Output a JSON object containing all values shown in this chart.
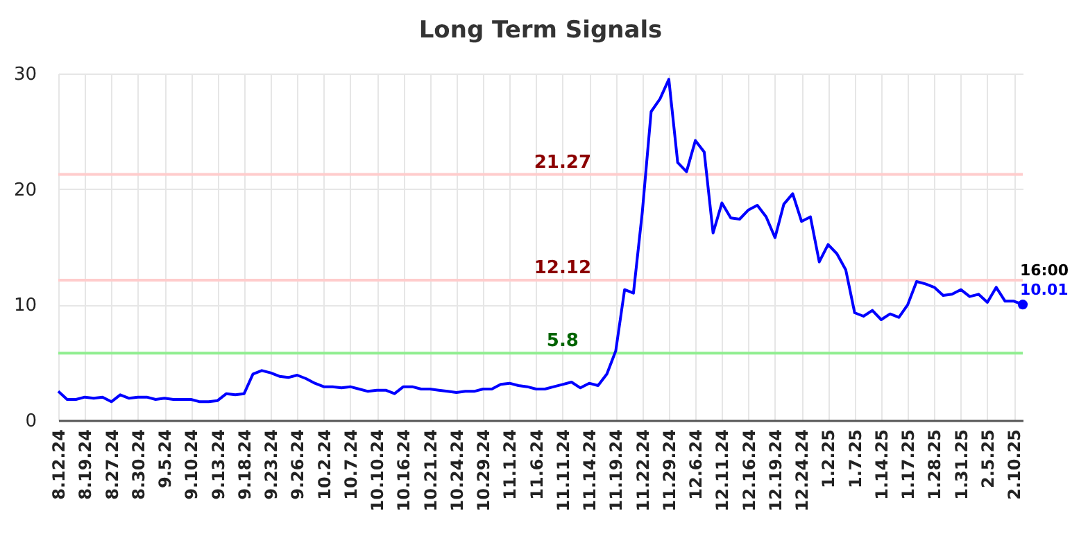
{
  "chart_data": {
    "type": "line",
    "title": "Long Term Signals",
    "categories": [
      "8.12.24",
      null,
      null,
      "8.19.24",
      null,
      null,
      "8.27.24",
      null,
      null,
      "8.30.24",
      null,
      null,
      "9.5.24",
      null,
      null,
      "9.10.24",
      null,
      null,
      "9.13.24",
      null,
      null,
      "9.18.24",
      null,
      null,
      "9.23.24",
      null,
      null,
      "9.26.24",
      null,
      null,
      "10.2.24",
      null,
      null,
      "10.7.24",
      null,
      null,
      "10.10.24",
      null,
      null,
      "10.16.24",
      null,
      null,
      "10.21.24",
      null,
      null,
      "10.24.24",
      null,
      null,
      "10.29.24",
      null,
      null,
      "11.1.24",
      null,
      null,
      "11.6.24",
      null,
      null,
      "11.11.24",
      null,
      null,
      "11.14.24",
      null,
      null,
      "11.19.24",
      null,
      null,
      "11.22.24",
      null,
      null,
      "11.29.24",
      null,
      null,
      "12.6.24",
      null,
      null,
      "12.11.24",
      null,
      null,
      "12.16.24",
      null,
      null,
      "12.19.24",
      null,
      null,
      "12.24.24",
      null,
      null,
      "1.2.25",
      null,
      null,
      "1.7.25",
      null,
      null,
      "1.14.25",
      null,
      null,
      "1.17.25",
      null,
      null,
      "1.28.25",
      null,
      null,
      "1.31.25",
      null,
      null,
      "2.5.25",
      null,
      null,
      "2.10.25",
      null
    ],
    "series": [
      {
        "color": "#0000ff",
        "values": [
          2.5,
          1.8,
          1.8,
          2.0,
          1.9,
          2.0,
          1.6,
          2.2,
          1.9,
          2.0,
          2.0,
          1.8,
          1.9,
          1.8,
          1.8,
          1.8,
          1.6,
          1.6,
          1.7,
          2.3,
          2.2,
          2.3,
          4.0,
          4.3,
          4.1,
          3.8,
          3.7,
          3.9,
          3.6,
          3.2,
          2.9,
          2.9,
          2.8,
          2.9,
          2.7,
          2.5,
          2.6,
          2.6,
          2.3,
          2.9,
          2.9,
          2.7,
          2.7,
          2.6,
          2.5,
          2.4,
          2.5,
          2.5,
          2.7,
          2.7,
          3.1,
          3.2,
          3.0,
          2.9,
          2.7,
          2.7,
          2.9,
          3.1,
          3.3,
          2.8,
          3.2,
          3.0,
          4.0,
          6.0,
          11.3,
          11.0,
          18.0,
          26.7,
          27.8,
          29.5,
          22.3,
          21.5,
          24.2,
          23.2,
          16.2,
          18.8,
          17.5,
          17.4,
          18.2,
          18.6,
          17.6,
          15.8,
          18.7,
          19.6,
          17.2,
          17.6,
          13.7,
          15.2,
          14.4,
          13.0,
          9.3,
          9.0,
          9.5,
          8.7,
          9.2,
          8.9,
          10.0,
          12.0,
          11.8,
          11.5,
          10.8,
          10.9,
          11.3,
          10.7,
          10.9,
          10.2,
          11.5,
          10.3,
          10.3,
          10.01
        ],
        "value_labels": [
          null,
          null,
          null,
          null,
          null,
          null,
          null,
          null,
          null,
          null,
          null,
          null,
          null,
          null,
          null,
          null,
          null,
          null,
          null,
          null,
          null,
          null,
          null,
          null,
          null,
          null,
          null,
          null,
          null,
          null,
          null,
          null,
          null,
          null,
          null,
          null,
          null,
          null,
          null,
          null,
          null,
          null,
          null,
          null,
          null,
          null,
          null,
          null,
          null,
          null,
          null,
          null,
          null,
          null,
          null,
          null,
          null,
          null,
          null,
          null,
          null,
          null,
          null,
          null,
          null,
          null,
          null,
          null,
          null,
          null,
          null,
          null,
          null,
          null,
          null,
          null,
          null,
          null,
          null,
          null,
          null,
          null,
          null,
          null,
          null,
          null,
          null,
          null,
          null,
          null,
          null,
          null,
          null,
          null,
          null,
          null,
          null,
          null,
          null,
          null,
          null,
          null,
          null,
          null,
          null,
          null,
          null,
          null,
          null,
          "10.01"
        ]
      }
    ],
    "ylim": [
      0,
      30
    ],
    "yticks": [
      0,
      10,
      20,
      30
    ],
    "grid": true,
    "line_style": "solid",
    "ref_lines": [
      {
        "axis": "y",
        "value": 21.27,
        "label": "21.27",
        "color": "#ffcccc"
      },
      {
        "axis": "y",
        "value": 12.12,
        "label": "12.12",
        "color": "#ffcccc"
      },
      {
        "axis": "y",
        "value": 5.8,
        "label": "5.8",
        "color": "#90ee90"
      }
    ],
    "annotations": [
      "16:00"
    ]
  }
}
